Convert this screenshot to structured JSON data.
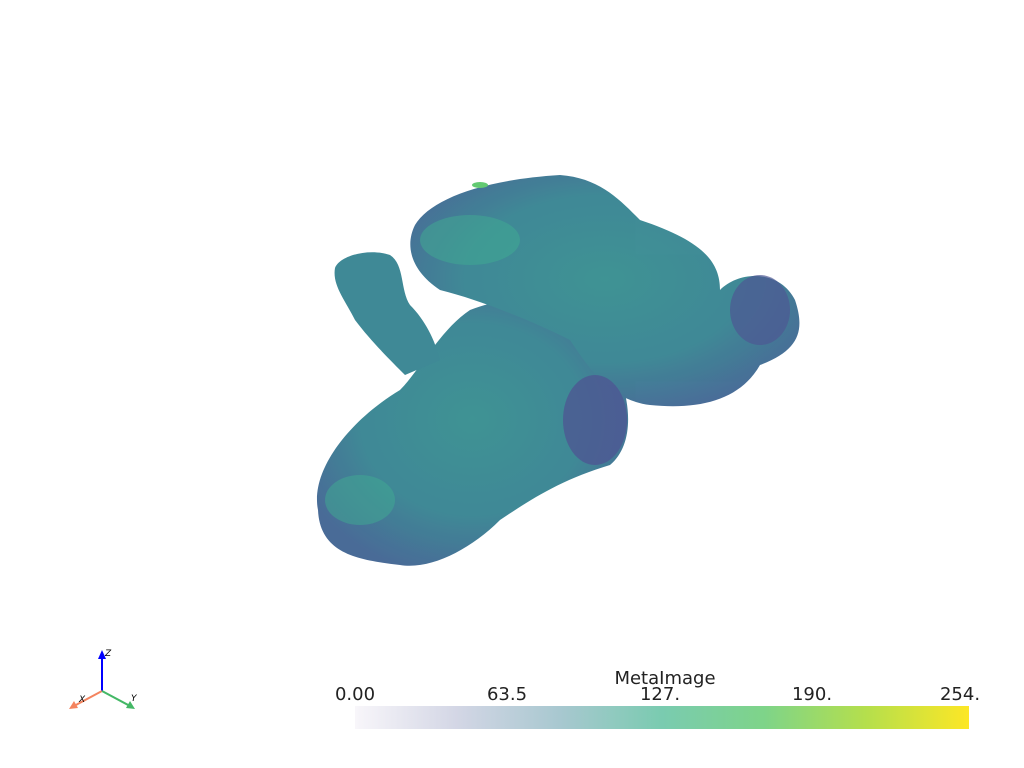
{
  "scalar_bar": {
    "title": "MetaImage",
    "ticks": [
      "0.00",
      "63.5",
      "127.",
      "190.",
      "254."
    ],
    "range": [
      0,
      254
    ],
    "colormap": "viridis (opacity-mapped)",
    "colors": [
      "#f8f6fa",
      "#d3d6e5",
      "#a8c8d0",
      "#7acbb0",
      "#7ed489",
      "#b5df4c",
      "#fde725"
    ]
  },
  "orientation_axes": {
    "x_label": "X",
    "y_label": "Y",
    "z_label": "Z",
    "x_color": "#f4845f",
    "y_color": "#44b866",
    "z_color": "#0000ff"
  },
  "volume": {
    "colors": [
      "#2f7f8e",
      "#3a5f8f",
      "#3e4a8a",
      "#2fa58a",
      "#56c667"
    ]
  }
}
